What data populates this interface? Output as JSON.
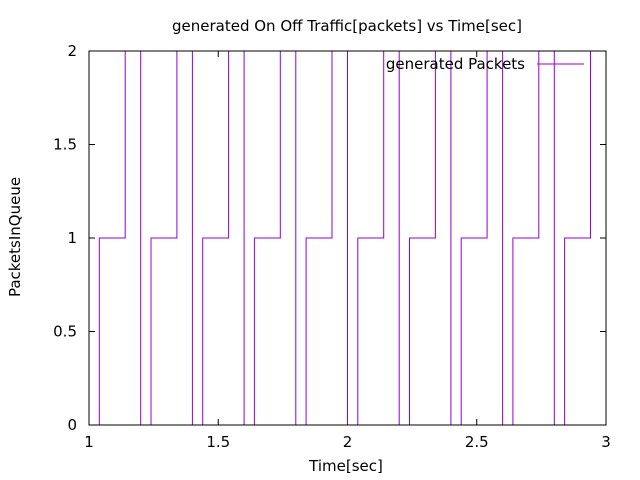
{
  "chart_data": {
    "type": "line",
    "title": "generated On Off Traffic[packets] vs Time[sec]",
    "xlabel": "Time[sec]",
    "ylabel": "PacketsInQueue",
    "xlim": [
      1,
      3
    ],
    "ylim": [
      0,
      2
    ],
    "x_ticks": [
      1,
      1.5,
      2,
      2.5,
      3
    ],
    "y_ticks": [
      0,
      0.5,
      1,
      1.5,
      2
    ],
    "x_tick_labels": [
      "1",
      "1.5",
      "2",
      "2.5",
      "3"
    ],
    "y_tick_labels": [
      "0",
      "0.5",
      "1",
      "1.5",
      "2"
    ],
    "grid": false,
    "legend_position": "top-right",
    "line_color": "#9400d3",
    "series": [
      {
        "name": "generated Packets",
        "x": [
          1.04,
          1.04,
          1.14,
          1.14,
          1.2,
          1.2,
          1.24,
          1.24,
          1.34,
          1.34,
          1.4,
          1.4,
          1.44,
          1.44,
          1.54,
          1.54,
          1.6,
          1.6,
          1.64,
          1.64,
          1.74,
          1.74,
          1.8,
          1.8,
          1.84,
          1.84,
          1.94,
          1.94,
          2.0,
          2.0,
          2.04,
          2.04,
          2.14,
          2.14,
          2.2,
          2.2,
          2.24,
          2.24,
          2.34,
          2.34,
          2.4,
          2.4,
          2.44,
          2.44,
          2.54,
          2.54,
          2.6,
          2.6,
          2.64,
          2.64,
          2.74,
          2.74,
          2.8,
          2.8,
          2.84,
          2.84,
          2.94,
          2.94
        ],
        "y": [
          0,
          1,
          1,
          2,
          2,
          0,
          0,
          1,
          1,
          2,
          2,
          0,
          0,
          1,
          1,
          2,
          2,
          0,
          0,
          1,
          1,
          2,
          2,
          0,
          0,
          1,
          1,
          2,
          2,
          0,
          0,
          1,
          1,
          2,
          2,
          0,
          0,
          1,
          1,
          2,
          2,
          0,
          0,
          1,
          1,
          2,
          2,
          0,
          0,
          1,
          1,
          2,
          2,
          0,
          0,
          1,
          1,
          2
        ]
      }
    ]
  }
}
